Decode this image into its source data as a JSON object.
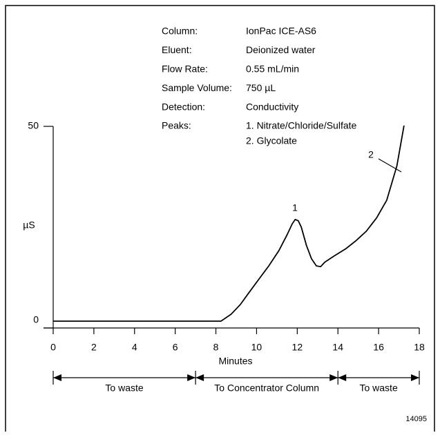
{
  "chart_data": {
    "type": "line",
    "info": [
      {
        "label": "Column:",
        "value": "IonPac ICE-AS6"
      },
      {
        "label": "Eluent:",
        "value": "Deionized water"
      },
      {
        "label": "Flow Rate:",
        "value": "0.55 mL/min"
      },
      {
        "label": "Sample Volume:",
        "value": "750 µL"
      },
      {
        "label": "Detection:",
        "value": "Conductivity"
      },
      {
        "label": "Peaks:",
        "value": "1. Nitrate/Chloride/Sulfate"
      },
      {
        "label": null,
        "value": "2. Glycolate"
      }
    ],
    "x_label": "Minutes",
    "y_label": "µS",
    "x": [
      0,
      4,
      8.25,
      8.75,
      9.2,
      9.6,
      10.1,
      10.6,
      11.1,
      11.5,
      11.75,
      11.9,
      12.05,
      12.2,
      12.45,
      12.7,
      12.94,
      13.15,
      13.35,
      13.8,
      14.4,
      14.9,
      15.4,
      15.9,
      16.4,
      16.9,
      17.25
    ],
    "y": [
      1.7,
      1.7,
      1.7,
      3.4,
      5.8,
      8.6,
      12.0,
      15.4,
      19.2,
      23.1,
      25.8,
      26.9,
      26.6,
      25.0,
      20.5,
      17.2,
      15.4,
      15.2,
      16.3,
      17.8,
      19.7,
      21.7,
      24.0,
      27.3,
      31.7,
      40.2,
      50.2
    ],
    "color": "#000000",
    "peaks": [
      "1",
      "2"
    ],
    "xlim": [
      0,
      18
    ],
    "xticks": [
      0,
      2,
      4,
      6,
      8,
      10,
      12,
      14,
      16,
      18
    ],
    "ylim": [
      0,
      50
    ],
    "yticks": [
      0,
      50
    ],
    "segments": [
      {
        "label": "To waste",
        "start": 0,
        "end": 7
      },
      {
        "label": "To Concentrator Column",
        "start": 7,
        "end": 14
      },
      {
        "label": "To waste",
        "start": 14,
        "end": 18
      }
    ],
    "figure_id": "14095"
  }
}
